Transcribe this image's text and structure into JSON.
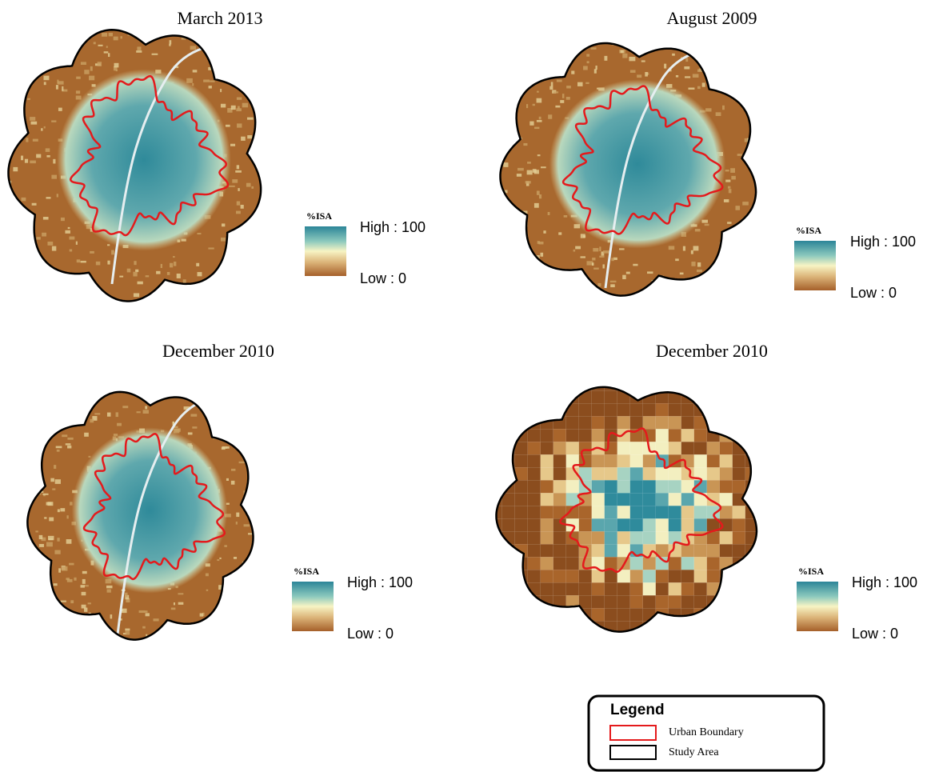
{
  "panels": [
    {
      "title": "March 2013",
      "legend_title": "%ISA",
      "high_label": "High : 100",
      "low_label": "Low : 0"
    },
    {
      "title": "August 2009",
      "legend_title": "%ISA",
      "high_label": "High : 100",
      "low_label": "Low : 0"
    },
    {
      "title": "December 2010",
      "legend_title": "%ISA",
      "high_label": "High : 100",
      "low_label": "Low : 0"
    },
    {
      "title": "December 2010",
      "legend_title": "%ISA",
      "high_label": "High : 100",
      "low_label": "Low : 0"
    }
  ],
  "legend": {
    "title": "Legend",
    "items": [
      "Urban Boundary",
      "Study Area"
    ]
  }
}
